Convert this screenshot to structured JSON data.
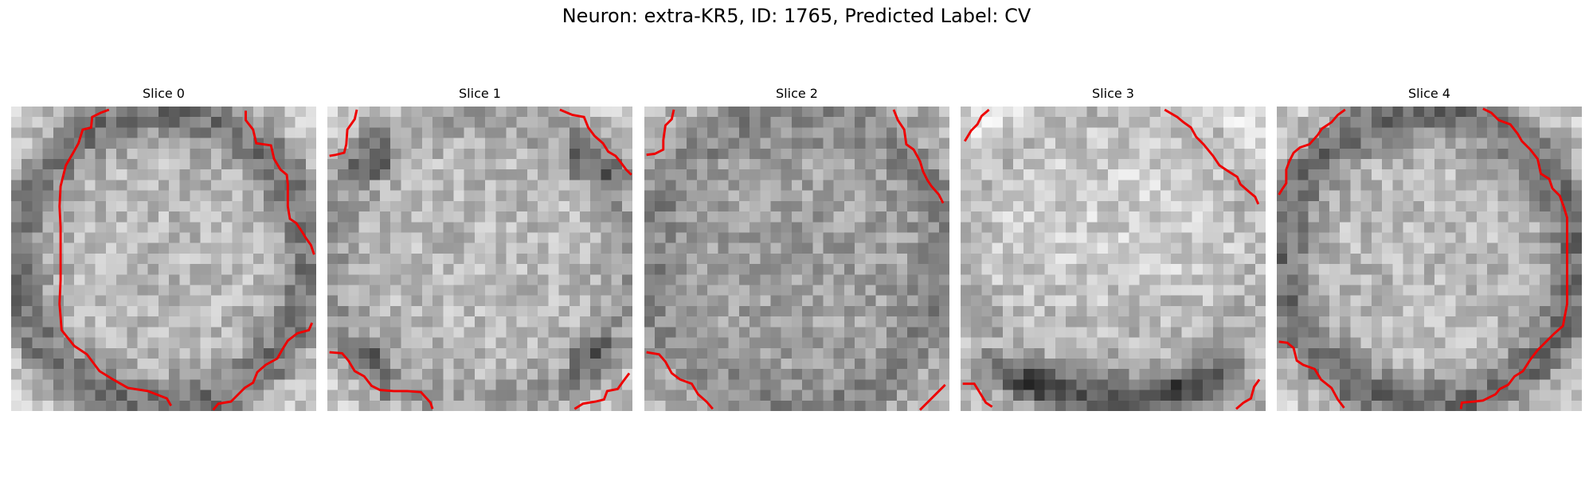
{
  "title": "Neuron: extra-KR5, ID: 1765, Predicted Label: CV",
  "colors": {
    "contour": "#ee0000",
    "background": "#ffffff"
  },
  "panels": [
    {
      "label": "Slice 0",
      "ring": "strong",
      "bright": "center"
    },
    {
      "label": "Slice 1",
      "ring": "corners",
      "bright": "center"
    },
    {
      "label": "Slice 2",
      "ring": "weak",
      "bright": "flat"
    },
    {
      "label": "Slice 3",
      "ring": "lower",
      "bright": "upper"
    },
    {
      "label": "Slice 4",
      "ring": "right",
      "bright": "center"
    }
  ]
}
